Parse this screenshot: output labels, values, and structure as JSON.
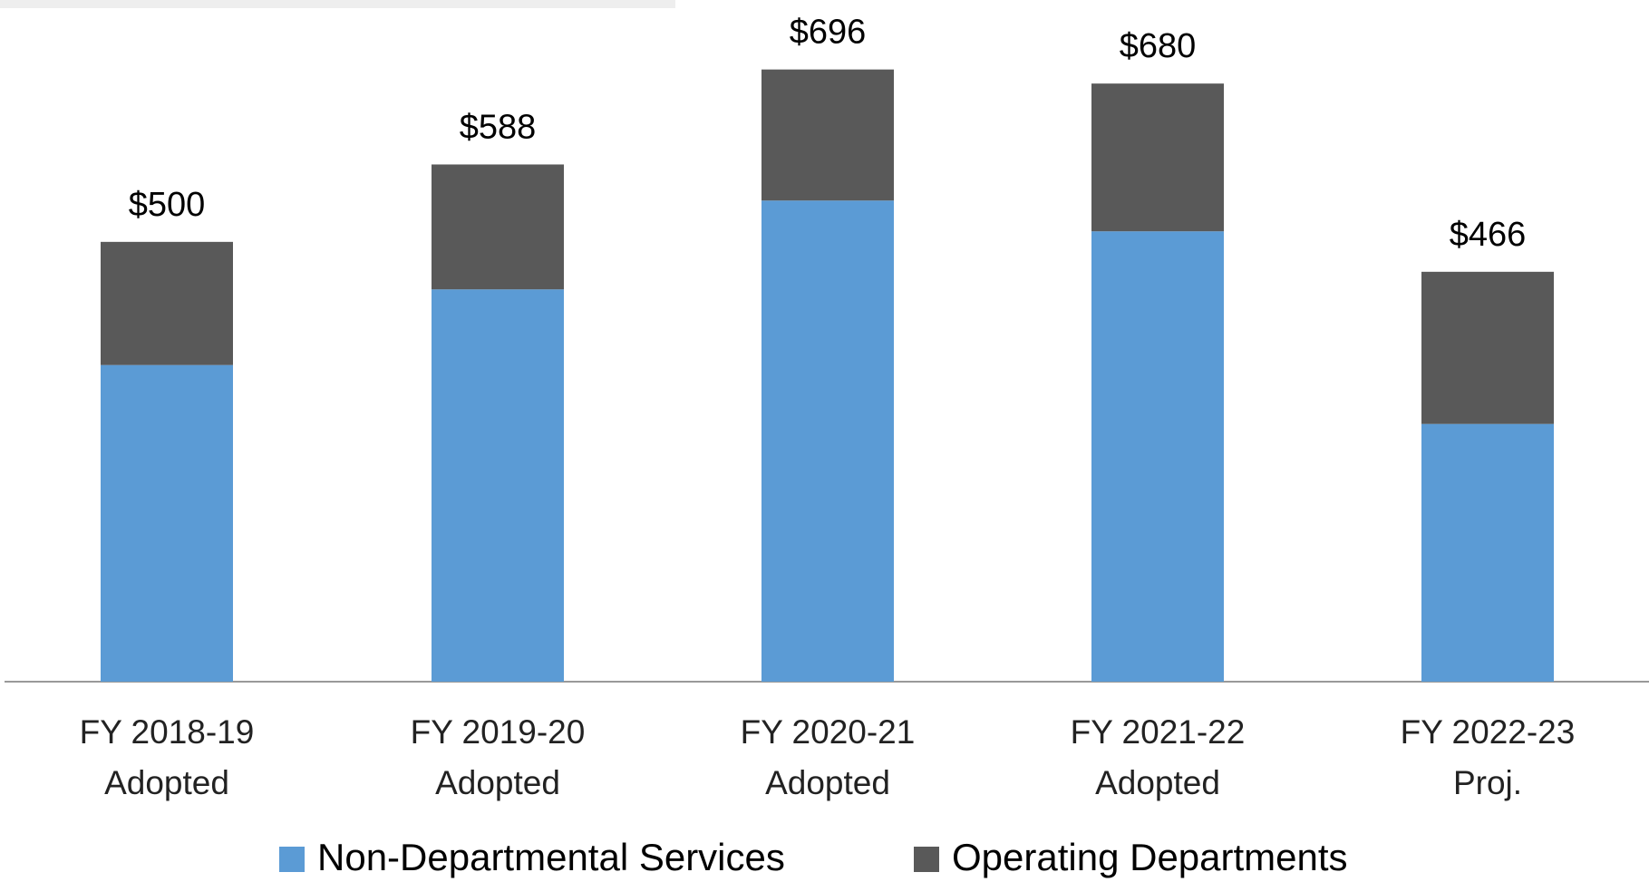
{
  "chart_data": {
    "type": "stacked_bar",
    "categories": [
      "FY 2018-19\nAdopted",
      "FY 2019-20\nAdopted",
      "FY 2020-21\nAdopted",
      "FY 2021-22\nAdopted",
      "FY 2022-23\nProj."
    ],
    "series": [
      {
        "name": "Non-Departmental Services",
        "color": "#5b9bd5",
        "values": [
          360,
          446,
          547,
          512,
          293
        ]
      },
      {
        "name": "Operating Departments",
        "color": "#595959",
        "values": [
          140,
          142,
          149,
          168,
          173
        ]
      }
    ],
    "totals": [
      500,
      588,
      696,
      680,
      466
    ],
    "total_labels": [
      "$500",
      "$588",
      "$696",
      "$680",
      "$466"
    ],
    "ylim": [
      0,
      775
    ]
  }
}
